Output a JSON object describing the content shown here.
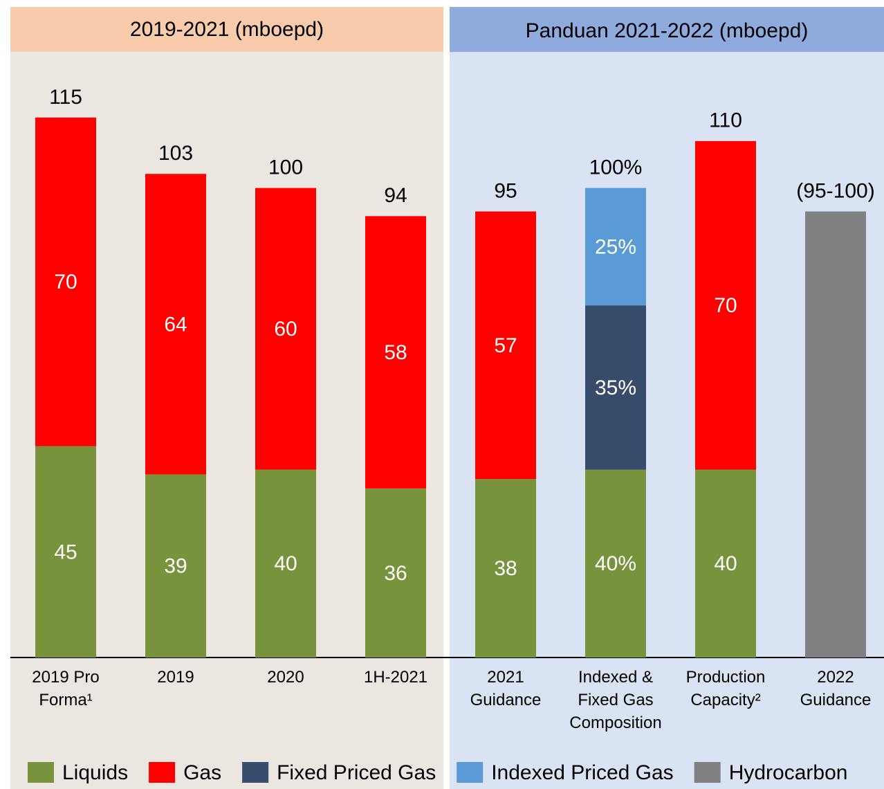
{
  "chart_data": {
    "type": "stacked_bar",
    "panels": [
      "2019-2021 (mboepd)",
      "Panduan 2021-2022 (mboepd)"
    ],
    "categories": [
      "2019 Pro Forma¹",
      "2019",
      "2020",
      "1H-2021",
      "2021 Guidance",
      "Indexed & Fixed Gas Composition",
      "Production Capacity²",
      "2022 Guidance"
    ],
    "series": [
      {
        "name": "Liquids",
        "color": "#77933c",
        "values": [
          45,
          39,
          40,
          36,
          38,
          40,
          40,
          null
        ],
        "value_labels": [
          "45",
          "39",
          "40",
          "36",
          "38",
          "40%",
          "40",
          null
        ]
      },
      {
        "name": "Gas",
        "color": "#ff0000",
        "values": [
          70,
          64,
          60,
          58,
          57,
          null,
          70,
          null
        ]
      },
      {
        "name": "Fixed Priced Gas",
        "color": "#374c6b",
        "values": [
          null,
          null,
          null,
          null,
          null,
          35,
          null,
          null
        ],
        "value_labels": [
          null,
          null,
          null,
          null,
          null,
          "35%",
          null,
          null
        ]
      },
      {
        "name": "Indexed Priced Gas",
        "color": "#5b9bd5",
        "values": [
          null,
          null,
          null,
          null,
          null,
          25,
          null,
          null
        ],
        "value_labels": [
          null,
          null,
          null,
          null,
          null,
          "25%",
          null,
          null
        ]
      },
      {
        "name": "Hydrocarbon",
        "color": "#808080",
        "values": [
          null,
          null,
          null,
          null,
          null,
          null,
          null,
          95
        ],
        "data_labels": false
      }
    ],
    "totals": [
      115,
      103,
      100,
      94,
      95,
      100,
      110,
      95
    ],
    "total_labels": [
      "115",
      "103",
      "100",
      "94",
      "95",
      "100%",
      "110",
      "(95-100)"
    ],
    "ylim": [
      0,
      125
    ]
  }
}
